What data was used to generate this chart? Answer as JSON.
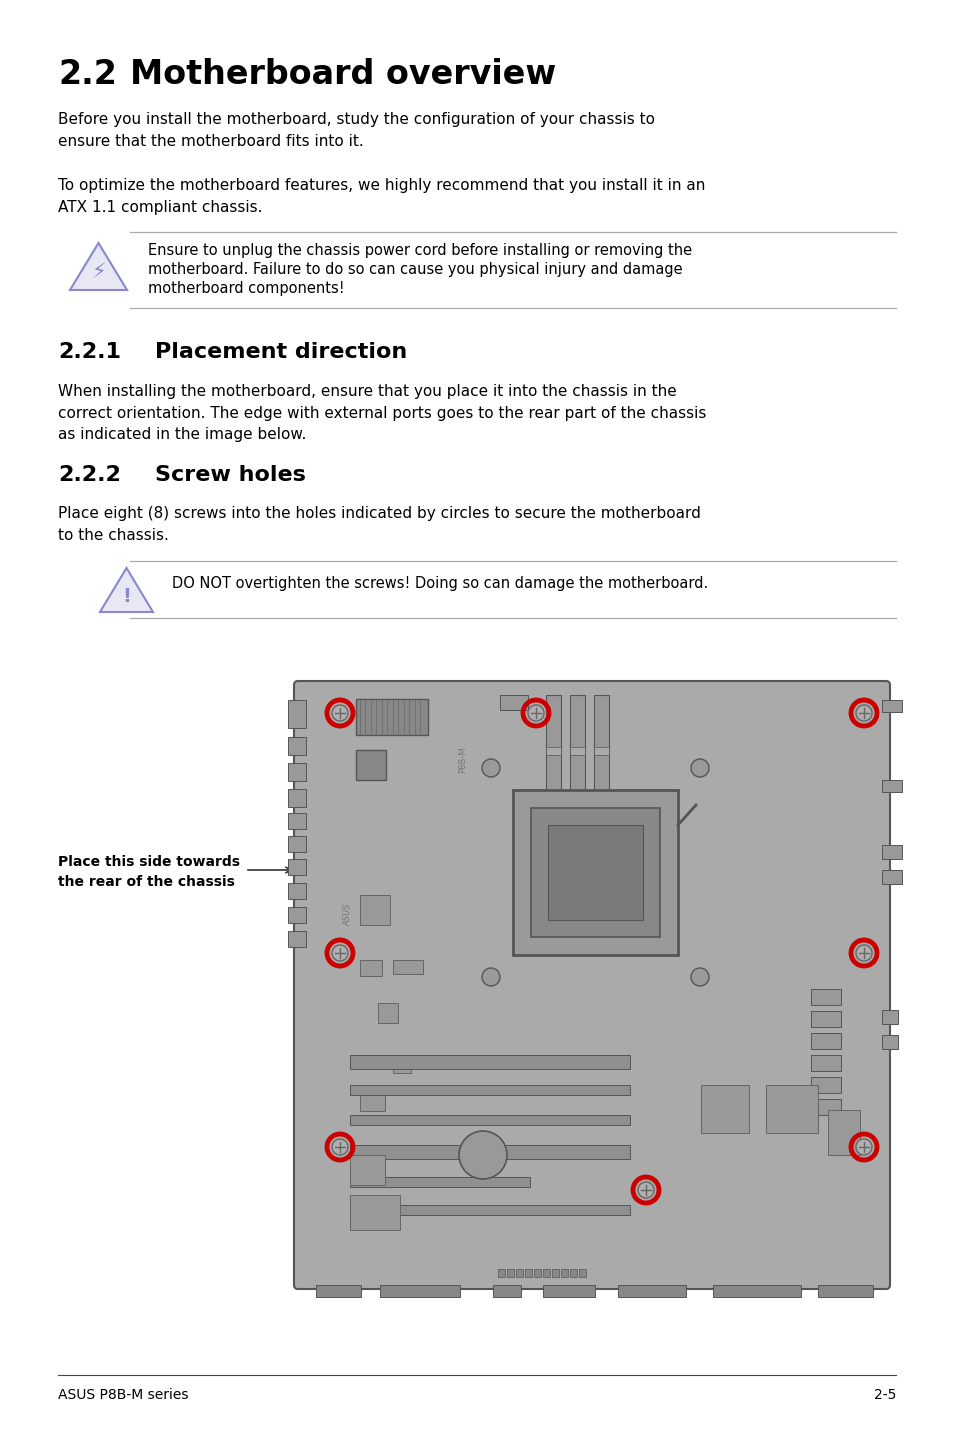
{
  "page_title_num": "2.2",
  "page_title_text": "Motherboard overview",
  "para1": "Before you install the motherboard, study the configuration of your chassis to\nensure that the motherboard fits into it.",
  "para2": "To optimize the motherboard features, we highly recommend that you install it in an\nATX 1.1 compliant chassis.",
  "warning1_line1": "Ensure to unplug the chassis power cord before installing or removing the",
  "warning1_line2": "motherboard. Failure to do so can cause you physical injury and damage",
  "warning1_line3": "motherboard components!",
  "section221_num": "2.2.1",
  "section221_text": "Placement direction",
  "para3": "When installing the motherboard, ensure that you place it into the chassis in the\ncorrect orientation. The edge with external ports goes to the rear part of the chassis\nas indicated in the image below.",
  "section222_num": "2.2.2",
  "section222_text": "Screw holes",
  "para4": "Place eight (8) screws into the holes indicated by circles to secure the motherboard\nto the chassis.",
  "warning2": "DO NOT overtighten the screws! Doing so can damage the motherboard.",
  "label_arrow": "Place this side towards\nthe rear of the chassis",
  "footer_left": "ASUS P8B-M series",
  "footer_right": "2-5",
  "bg_color": "#ffffff",
  "text_color": "#000000",
  "warn_icon_edge": "#8888cc",
  "warn_icon_face": "#e8e8f4",
  "board_fill": "#aaaaaa",
  "board_edge": "#555555",
  "screw_color": "#cc0000",
  "sep_color": "#aaaaaa",
  "comp_fill": "#999999",
  "comp_edge": "#666666"
}
